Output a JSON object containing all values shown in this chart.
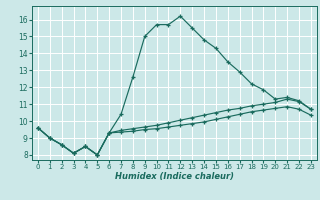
{
  "xlabel": "Humidex (Indice chaleur)",
  "bg_color": "#cce8e8",
  "grid_color": "#b8d8d8",
  "line_color": "#1a6b5e",
  "xlim": [
    -0.5,
    23.5
  ],
  "ylim": [
    7.7,
    16.8
  ],
  "xticks": [
    0,
    1,
    2,
    3,
    4,
    5,
    6,
    7,
    8,
    9,
    10,
    11,
    12,
    13,
    14,
    15,
    16,
    17,
    18,
    19,
    20,
    21,
    22,
    23
  ],
  "yticks": [
    8,
    9,
    10,
    11,
    12,
    13,
    14,
    15,
    16
  ],
  "line1_x": [
    0,
    1,
    2,
    3,
    4,
    5,
    6,
    7,
    8,
    9,
    10,
    11,
    12,
    13,
    14,
    15,
    16,
    17,
    18,
    19,
    20,
    21,
    22,
    23
  ],
  "line1_y": [
    9.6,
    9.0,
    8.6,
    8.1,
    8.5,
    8.0,
    9.3,
    10.4,
    12.6,
    15.0,
    15.7,
    15.7,
    16.2,
    15.5,
    14.8,
    14.3,
    13.5,
    12.9,
    12.2,
    11.85,
    11.3,
    11.4,
    11.2,
    10.7
  ],
  "line2_x": [
    0,
    1,
    2,
    3,
    4,
    5,
    6,
    7,
    8,
    9,
    10,
    11,
    12,
    13,
    14,
    15,
    16,
    17,
    18,
    19,
    20,
    21,
    22,
    23
  ],
  "line2_y": [
    9.6,
    9.0,
    8.6,
    8.1,
    8.5,
    8.0,
    9.3,
    9.45,
    9.55,
    9.65,
    9.75,
    9.9,
    10.05,
    10.2,
    10.35,
    10.5,
    10.65,
    10.75,
    10.9,
    11.0,
    11.1,
    11.3,
    11.15,
    10.7
  ],
  "line3_x": [
    0,
    1,
    2,
    3,
    4,
    5,
    6,
    7,
    8,
    9,
    10,
    11,
    12,
    13,
    14,
    15,
    16,
    17,
    18,
    19,
    20,
    21,
    22,
    23
  ],
  "line3_y": [
    9.6,
    9.0,
    8.6,
    8.1,
    8.5,
    8.0,
    9.3,
    9.35,
    9.4,
    9.5,
    9.55,
    9.65,
    9.75,
    9.85,
    9.95,
    10.1,
    10.25,
    10.4,
    10.55,
    10.65,
    10.75,
    10.85,
    10.7,
    10.35
  ]
}
